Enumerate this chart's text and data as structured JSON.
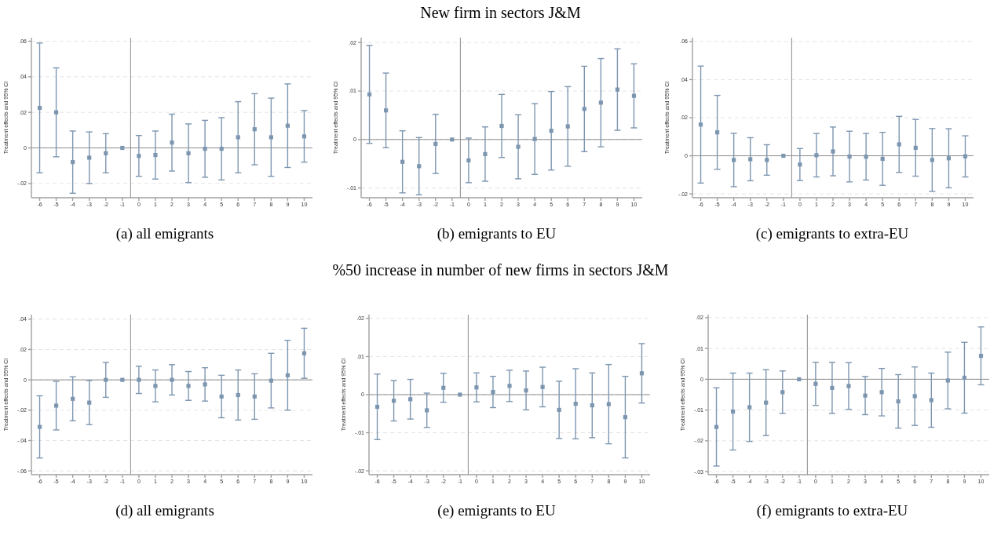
{
  "chart_data": [
    {
      "type": "scatter",
      "title": "(a) all emigrants",
      "annotations": [
        "New firm in sectors J&M"
      ],
      "ylabel": "Treatment effects and 95% CI",
      "x": [
        -6,
        -5,
        -4,
        -3,
        -2,
        -1,
        0,
        1,
        2,
        3,
        4,
        5,
        6,
        7,
        8,
        9,
        10
      ],
      "xlim": [
        -6.5,
        10.5
      ],
      "xticks": [
        -6,
        -5,
        -4,
        -3,
        -2,
        -1,
        0,
        1,
        2,
        3,
        4,
        5,
        6,
        7,
        8,
        9,
        10
      ],
      "ylim": [
        -0.028,
        0.062
      ],
      "yticks": [
        {
          "value": -0.02,
          "label": "-.02"
        },
        {
          "value": 0,
          "label": "0"
        },
        {
          "value": 0.02,
          "label": ".02"
        },
        {
          "value": 0.04,
          "label": ".04"
        },
        {
          "value": 0.06,
          "label": ".06"
        }
      ],
      "values": [
        0.0225,
        0.02,
        -0.008,
        -0.0055,
        -0.003,
        0,
        -0.0045,
        -0.004,
        0.003,
        -0.003,
        -0.0005,
        -0.0005,
        0.006,
        0.0105,
        0.006,
        0.0125,
        0.0065
      ],
      "errors": [
        0.0365,
        0.025,
        0.0175,
        0.0145,
        0.011,
        null,
        0.0115,
        0.0135,
        0.016,
        0.0165,
        0.016,
        0.0175,
        0.02,
        0.02,
        0.022,
        0.0235,
        0.0145
      ],
      "color": "#7d96b0",
      "marker": "square",
      "grid": "y",
      "ref_lines": [
        {
          "axis": "x",
          "value": -0.5,
          "color": "#8c8c8c"
        },
        {
          "axis": "y",
          "value": 0,
          "color": "#8c8c8c"
        }
      ]
    },
    {
      "type": "scatter",
      "title": "(b) emigrants to EU",
      "ylabel": "Treatment effects and 95% CI",
      "x": [
        -6,
        -5,
        -4,
        -3,
        -2,
        -1,
        0,
        1,
        2,
        3,
        4,
        5,
        6,
        7,
        8,
        9,
        10
      ],
      "xlim": [
        -6.5,
        10.5
      ],
      "xticks": [
        -6,
        -5,
        -4,
        -3,
        -2,
        -1,
        0,
        1,
        2,
        3,
        4,
        5,
        6,
        7,
        8,
        9,
        10
      ],
      "ylim": [
        -0.012,
        0.021
      ],
      "yticks": [
        {
          "value": -0.01,
          "label": "-.01"
        },
        {
          "value": 0,
          "label": "0"
        },
        {
          "value": 0.01,
          "label": ".01"
        },
        {
          "value": 0.02,
          "label": ".02"
        }
      ],
      "values": [
        0.0093,
        0.006,
        -0.0046,
        -0.0055,
        -0.0009,
        0,
        -0.0043,
        -0.003,
        0.0028,
        -0.0015,
        0.0001,
        0.0018,
        0.0027,
        0.0063,
        0.0076,
        0.0103,
        0.009
      ],
      "errors": [
        0.0101,
        0.0077,
        0.0064,
        0.0059,
        0.0061,
        null,
        0.0046,
        0.0056,
        0.0065,
        0.0066,
        0.0073,
        0.0081,
        0.0082,
        0.0088,
        0.0091,
        0.0084,
        0.0066
      ],
      "color": "#7d96b0",
      "marker": "square",
      "grid": "y",
      "ref_lines": [
        {
          "axis": "x",
          "value": -0.5,
          "color": "#8c8c8c"
        },
        {
          "axis": "y",
          "value": 0,
          "color": "#8c8c8c"
        }
      ]
    },
    {
      "type": "scatter",
      "title": "(c) emigrants to extra-EU",
      "ylabel": "Treatment effects and 95% CI",
      "x": [
        -6,
        -5,
        -4,
        -3,
        -2,
        -1,
        0,
        1,
        2,
        3,
        4,
        5,
        6,
        7,
        8,
        9,
        10
      ],
      "xlim": [
        -6.5,
        10.5
      ],
      "xticks": [
        -6,
        -5,
        -4,
        -3,
        -2,
        -1,
        0,
        1,
        2,
        3,
        4,
        5,
        6,
        7,
        8,
        9,
        10
      ],
      "ylim": [
        -0.022,
        0.062
      ],
      "yticks": [
        {
          "value": -0.02,
          "label": "-.02"
        },
        {
          "value": 0,
          "label": "0"
        },
        {
          "value": 0.02,
          "label": ".02"
        },
        {
          "value": 0.04,
          "label": ".04"
        },
        {
          "value": 0.06,
          "label": ".06"
        }
      ],
      "values": [
        0.0164,
        0.0123,
        -0.0022,
        -0.0018,
        -0.0022,
        0,
        -0.0046,
        0.0003,
        0.0023,
        -0.0004,
        -0.0005,
        -0.0016,
        0.006,
        0.0042,
        -0.0022,
        -0.0013,
        -0.0003
      ],
      "errors": [
        0.0307,
        0.0194,
        0.014,
        0.0113,
        0.008,
        null,
        0.0084,
        0.0114,
        0.0128,
        0.0133,
        0.0122,
        0.0139,
        0.0147,
        0.0149,
        0.0165,
        0.0155,
        0.0108
      ],
      "color": "#7d96b0",
      "marker": "square",
      "grid": "y",
      "ref_lines": [
        {
          "axis": "x",
          "value": -0.5,
          "color": "#8c8c8c"
        },
        {
          "axis": "y",
          "value": 0,
          "color": "#8c8c8c"
        }
      ]
    },
    {
      "type": "scatter",
      "title": "(d) all emigrants",
      "annotations": [
        "%50 increase in number of new firms in sectors J&M"
      ],
      "ylabel": "Treatment effects and 95% CI",
      "x": [
        -6,
        -5,
        -4,
        -3,
        -2,
        -1,
        0,
        1,
        2,
        3,
        4,
        5,
        6,
        7,
        8,
        9,
        10
      ],
      "xlim": [
        -6.5,
        10.5
      ],
      "xticks": [
        -6,
        -5,
        -4,
        -3,
        -2,
        -1,
        0,
        1,
        2,
        3,
        4,
        5,
        6,
        7,
        8,
        9,
        10
      ],
      "ylim": [
        -0.0625,
        0.043
      ],
      "yticks": [
        {
          "value": -0.06,
          "label": "-.06"
        },
        {
          "value": -0.04,
          "label": "-.04"
        },
        {
          "value": -0.02,
          "label": "-.02"
        },
        {
          "value": 0,
          "label": "0"
        },
        {
          "value": 0.02,
          "label": ".02"
        },
        {
          "value": 0.04,
          "label": ".04"
        }
      ],
      "values": [
        -0.031,
        -0.017,
        -0.0125,
        -0.015,
        0,
        0,
        0,
        -0.004,
        0,
        -0.004,
        -0.003,
        -0.011,
        -0.01,
        -0.011,
        -0.0005,
        0.003,
        0.0175
      ],
      "errors": [
        0.0205,
        0.016,
        0.0145,
        0.0145,
        0.0115,
        null,
        0.009,
        0.0105,
        0.01,
        0.0095,
        0.011,
        0.014,
        0.0165,
        0.015,
        0.018,
        0.023,
        0.0165
      ],
      "color": "#7d96b0",
      "marker": "square",
      "grid": "y",
      "ref_lines": [
        {
          "axis": "x",
          "value": -0.5,
          "color": "#8c8c8c"
        },
        {
          "axis": "y",
          "value": 0,
          "color": "#8c8c8c"
        }
      ]
    },
    {
      "type": "scatter",
      "title": "(e) emigrants to EU",
      "ylabel": "Treatment effects and 95% CI",
      "x": [
        -6,
        -5,
        -4,
        -3,
        -2,
        -1,
        0,
        1,
        2,
        3,
        4,
        5,
        6,
        7,
        8,
        9,
        10
      ],
      "xlim": [
        -6.5,
        10.5
      ],
      "xticks": [
        -6,
        -5,
        -4,
        -3,
        -2,
        -1,
        0,
        1,
        2,
        3,
        4,
        5,
        6,
        7,
        8,
        9,
        10
      ],
      "ylim": [
        -0.021,
        0.021
      ],
      "yticks": [
        {
          "value": -0.02,
          "label": "-.02"
        },
        {
          "value": -0.01,
          "label": "-.01"
        },
        {
          "value": 0,
          "label": "0"
        },
        {
          "value": 0.01,
          "label": ".01"
        },
        {
          "value": 0.02,
          "label": ".02"
        }
      ],
      "values": [
        -0.0032,
        -0.0016,
        -0.0012,
        -0.0041,
        0.0018,
        0,
        0.0019,
        0.0007,
        0.0023,
        0.0011,
        0.002,
        -0.004,
        -0.0024,
        -0.0028,
        -0.0025,
        -0.0059,
        0.0056
      ],
      "errors": [
        0.0086,
        0.0053,
        0.0052,
        0.0045,
        0.0038,
        null,
        0.0038,
        0.0041,
        0.0041,
        0.0051,
        0.0052,
        0.0075,
        0.0092,
        0.0085,
        0.0104,
        0.0107,
        0.0078
      ],
      "color": "#7d96b0",
      "marker": "square",
      "grid": "y",
      "ref_lines": [
        {
          "axis": "x",
          "value": -0.5,
          "color": "#8c8c8c"
        },
        {
          "axis": "y",
          "value": 0,
          "color": "#8c8c8c"
        }
      ]
    },
    {
      "type": "scatter",
      "title": "(f) emigrants to extra-EU",
      "ylabel": "Treatment effects and 95% CI",
      "x": [
        -6,
        -5,
        -4,
        -3,
        -2,
        -1,
        0,
        1,
        2,
        3,
        4,
        5,
        6,
        7,
        8,
        9,
        10
      ],
      "xlim": [
        -6.5,
        10.5
      ],
      "xticks": [
        -6,
        -5,
        -4,
        -3,
        -2,
        -1,
        0,
        1,
        2,
        3,
        4,
        5,
        6,
        7,
        8,
        9,
        10
      ],
      "ylim": [
        -0.031,
        0.021
      ],
      "yticks": [
        {
          "value": -0.03,
          "label": "-.03"
        },
        {
          "value": -0.02,
          "label": "-.02"
        },
        {
          "value": -0.01,
          "label": "-.01"
        },
        {
          "value": 0,
          "label": "0"
        },
        {
          "value": 0.01,
          "label": ".01"
        },
        {
          "value": 0.02,
          "label": ".02"
        }
      ],
      "values": [
        -0.0155,
        -0.0105,
        -0.0091,
        -0.0076,
        -0.0042,
        0,
        -0.0015,
        -0.0028,
        -0.0022,
        -0.0053,
        -0.0042,
        -0.0072,
        -0.0055,
        -0.0068,
        -0.0004,
        0.0005,
        0.0076
      ],
      "errors": [
        0.0127,
        0.0125,
        0.0111,
        0.0107,
        0.0069,
        null,
        0.007,
        0.0083,
        0.0076,
        0.0062,
        0.0077,
        0.0087,
        0.0095,
        0.0088,
        0.0092,
        0.0115,
        0.0094
      ],
      "color": "#7d96b0",
      "marker": "square",
      "grid": "y",
      "ref_lines": [
        {
          "axis": "x",
          "value": -0.5,
          "color": "#8c8c8c"
        },
        {
          "axis": "y",
          "value": 0,
          "color": "#8c8c8c"
        }
      ]
    }
  ]
}
